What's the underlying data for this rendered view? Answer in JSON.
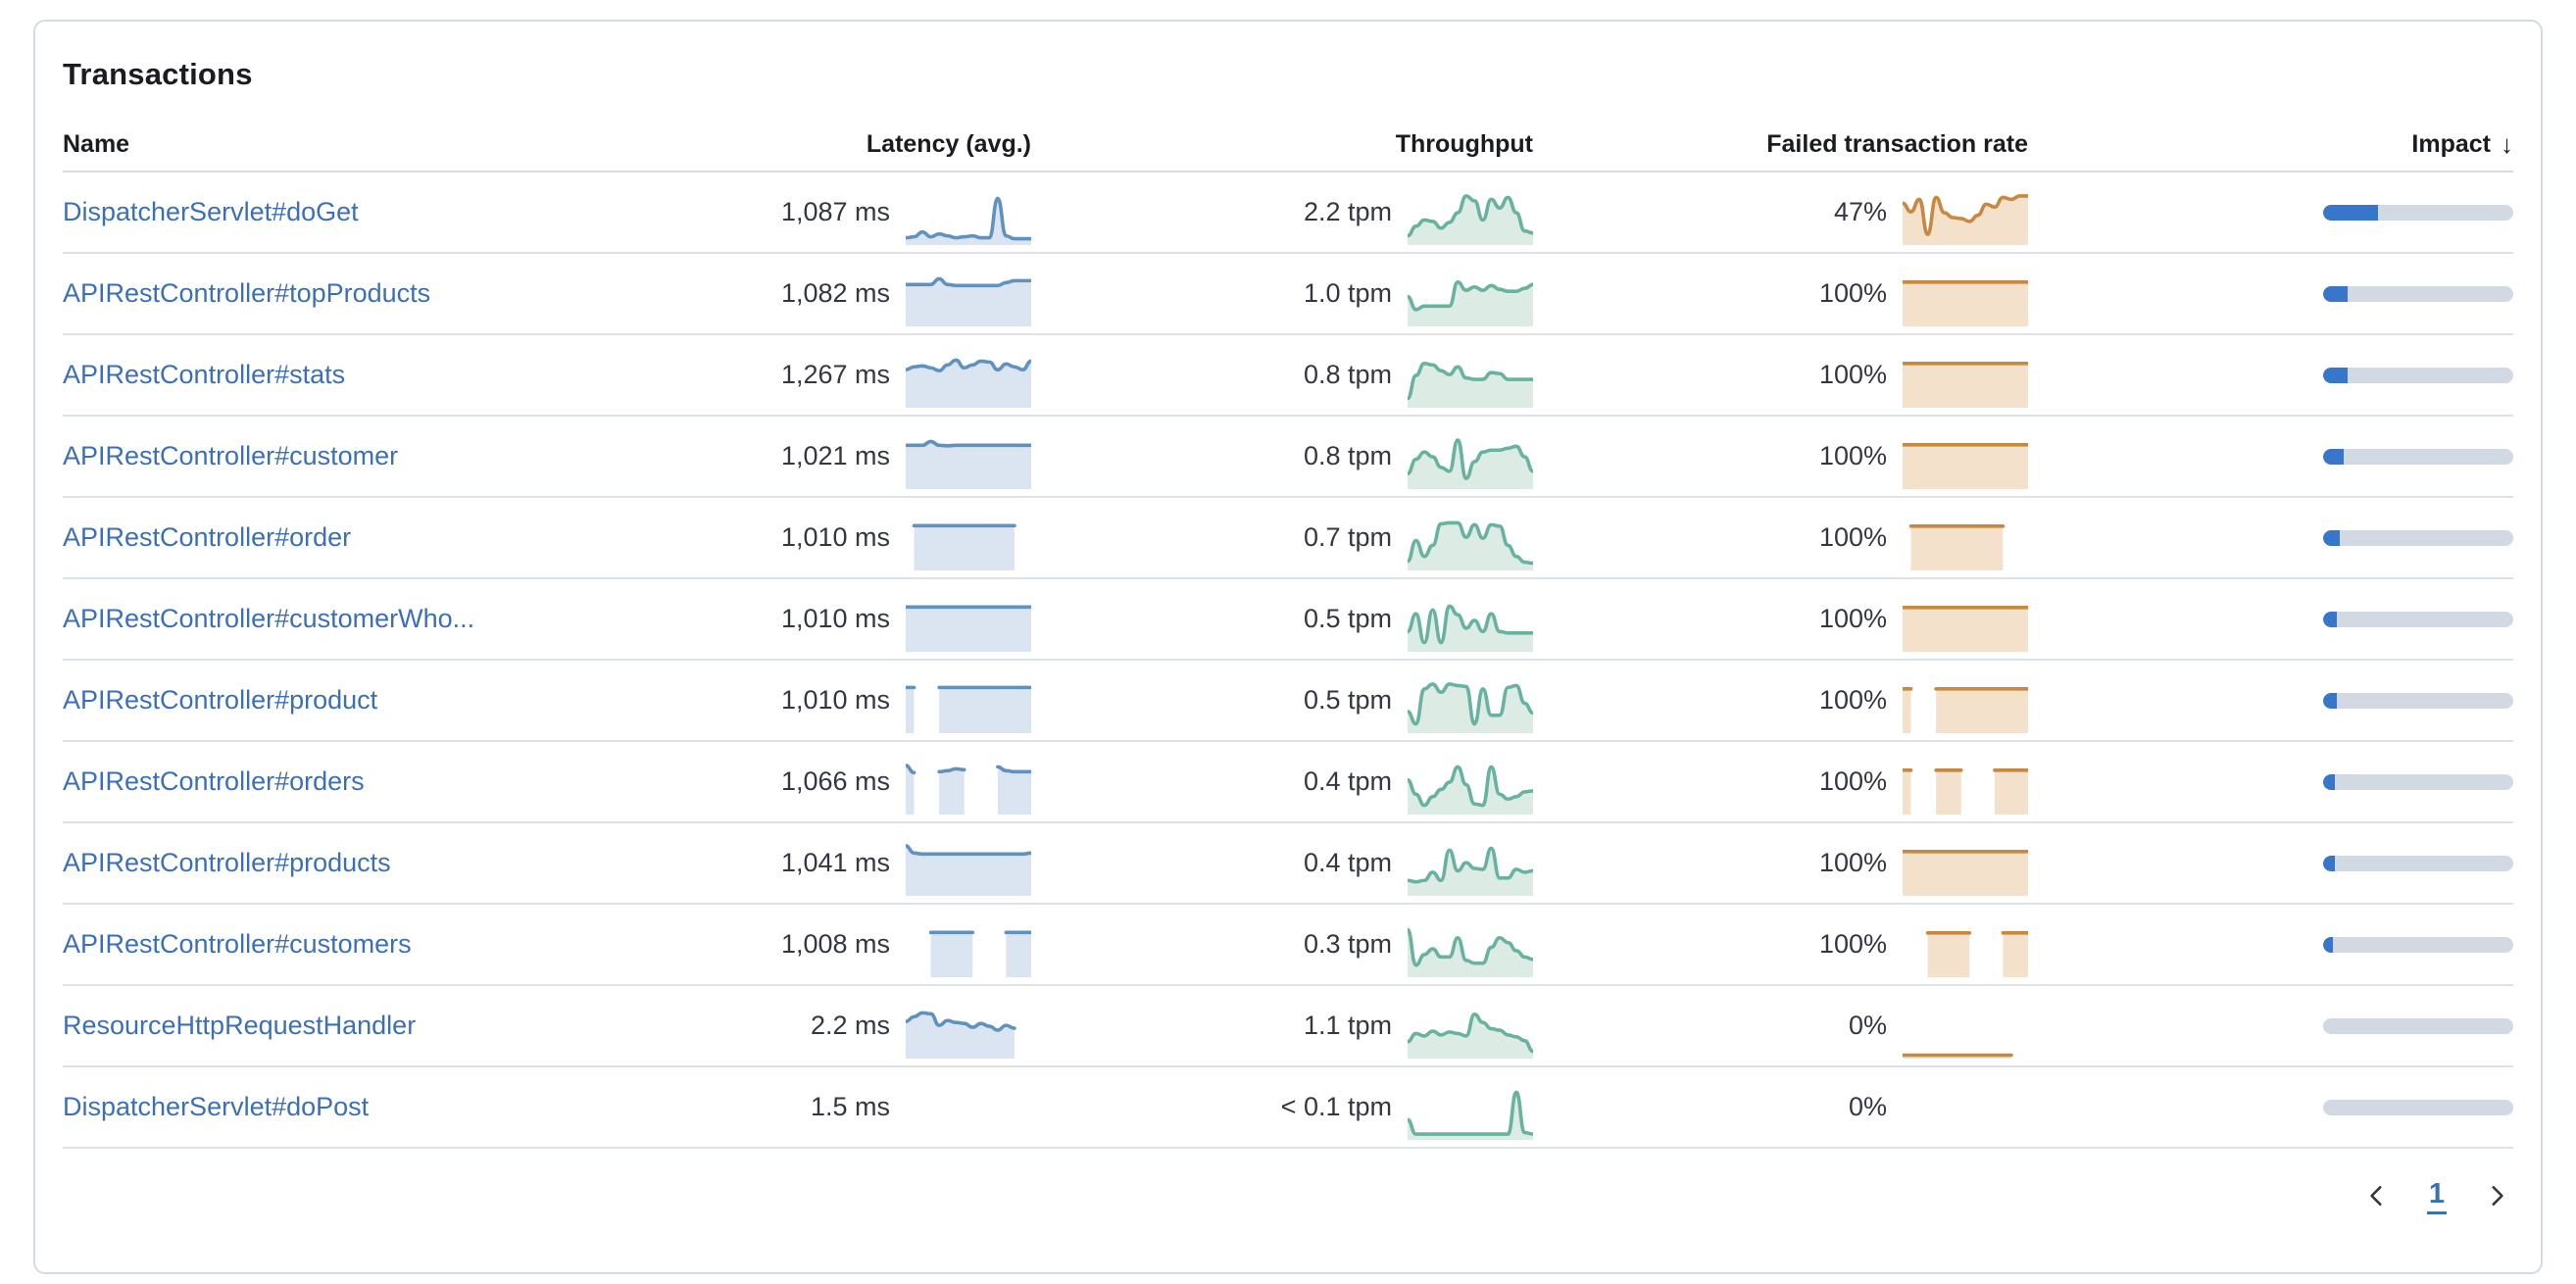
{
  "panel": {
    "title": "Transactions"
  },
  "columns": {
    "name": "Name",
    "latency": "Latency (avg.)",
    "throughput": "Throughput",
    "failed": "Failed transaction rate",
    "impact": "Impact",
    "impact_sort_arrow": "↓",
    "impact_sort_direction": "descending"
  },
  "pagination": {
    "current_page": "1",
    "prev_icon": "chevron-left",
    "next_icon": "chevron-right"
  },
  "colors": {
    "link_blue": "#3b70b8",
    "text_dark": "#343741",
    "heading": "#1a1c21",
    "panel_border": "#d3dae6",
    "row_divider": "#dde1ea",
    "latency_line": "#6092c0",
    "latency_fill": "#dbe5f1",
    "throughput_line": "#68b2a0",
    "throughput_fill": "#dcebe4",
    "failed_line": "#c9883f",
    "failed_fill": "#f3e1cc",
    "impact_bar": "#3776c9",
    "impact_track": "#d3d9e2"
  },
  "rows": [
    {
      "name": "DispatcherServlet#doGet",
      "latency_value": "1,087 ms",
      "latency_points": [
        0.08,
        0.1,
        0.2,
        0.1,
        0.16,
        0.12,
        0.08,
        0.1,
        0.12,
        0.08,
        0.08,
        0.9,
        0.12,
        0.06,
        0.06,
        0.06
      ],
      "throughput_value": "2.2 tpm",
      "throughput_points": [
        0.12,
        0.32,
        0.45,
        0.42,
        0.28,
        0.4,
        0.6,
        0.95,
        0.85,
        0.45,
        0.88,
        0.7,
        0.92,
        0.6,
        0.22,
        0.18
      ],
      "failed_value": "47%",
      "failed_points": [
        0.8,
        0.62,
        0.88,
        0.15,
        0.92,
        0.6,
        0.5,
        0.48,
        0.42,
        0.55,
        0.78,
        0.72,
        0.92,
        0.88,
        0.95,
        0.95
      ],
      "impact_pct": 29
    },
    {
      "name": "APIRestController#topProducts",
      "latency_value": "1,082 ms",
      "latency_points": [
        0.8,
        0.8,
        0.8,
        0.8,
        0.92,
        0.8,
        0.78,
        0.78,
        0.78,
        0.78,
        0.78,
        0.78,
        0.84,
        0.88,
        0.88,
        0.88
      ],
      "throughput_value": "1.0 tpm",
      "throughput_points": [
        0.55,
        0.28,
        0.35,
        0.35,
        0.35,
        0.35,
        0.85,
        0.68,
        0.75,
        0.68,
        0.78,
        0.7,
        0.66,
        0.66,
        0.72,
        0.8
      ],
      "failed_value": "100%",
      "failed_points": [
        0.85,
        0.85,
        0.85,
        0.85,
        0.85,
        0.85,
        0.85,
        0.85,
        0.85,
        0.85,
        0.85,
        0.85,
        0.85,
        0.85,
        0.85,
        0.85
      ],
      "impact_pct": 13
    },
    {
      "name": "APIRestController#stats",
      "latency_value": "1,267 ms",
      "latency_points": [
        0.72,
        0.78,
        0.8,
        0.76,
        0.7,
        0.82,
        0.92,
        0.76,
        0.82,
        0.9,
        0.88,
        0.72,
        0.84,
        0.78,
        0.72,
        0.9
      ],
      "throughput_value": "0.8 tpm",
      "throughput_points": [
        0.12,
        0.6,
        0.85,
        0.82,
        0.7,
        0.62,
        0.78,
        0.55,
        0.52,
        0.52,
        0.66,
        0.64,
        0.52,
        0.52,
        0.52,
        0.52
      ],
      "failed_value": "100%",
      "failed_points": [
        0.85,
        0.85,
        0.85,
        0.85,
        0.85,
        0.85,
        0.85,
        0.85,
        0.85,
        0.85,
        0.85,
        0.85,
        0.85,
        0.85,
        0.85,
        0.85
      ],
      "impact_pct": 13
    },
    {
      "name": "APIRestController#customer",
      "latency_value": "1,021 ms",
      "latency_points": [
        0.84,
        0.84,
        0.84,
        0.92,
        0.84,
        0.83,
        0.84,
        0.84,
        0.84,
        0.84,
        0.84,
        0.84,
        0.84,
        0.84,
        0.84,
        0.84
      ],
      "throughput_value": "0.8 tpm",
      "throughput_points": [
        0.25,
        0.55,
        0.7,
        0.6,
        0.38,
        0.3,
        0.95,
        0.15,
        0.5,
        0.7,
        0.74,
        0.74,
        0.78,
        0.82,
        0.6,
        0.3
      ],
      "failed_value": "100%",
      "failed_points": [
        0.85,
        0.85,
        0.85,
        0.85,
        0.85,
        0.85,
        0.85,
        0.85,
        0.85,
        0.85,
        0.85,
        0.85,
        0.85,
        0.85,
        0.85,
        0.85
      ],
      "impact_pct": 11
    },
    {
      "name": "APIRestController#order",
      "latency_value": "1,010 ms",
      "latency_points": [
        null,
        0.86,
        0.86,
        0.86,
        0.86,
        0.86,
        0.86,
        0.86,
        0.86,
        0.86,
        0.86,
        0.86,
        0.86,
        0.86,
        null,
        null
      ],
      "throughput_value": "0.7 tpm",
      "throughput_points": [
        0.12,
        0.55,
        0.22,
        0.45,
        0.9,
        0.92,
        0.92,
        0.62,
        0.88,
        0.6,
        0.88,
        0.85,
        0.45,
        0.22,
        0.1,
        0.08
      ],
      "failed_value": "100%",
      "failed_points": [
        null,
        0.85,
        0.85,
        0.85,
        0.85,
        0.85,
        0.85,
        0.85,
        0.85,
        0.85,
        0.85,
        0.85,
        0.85,
        null,
        null,
        null
      ],
      "impact_pct": 9
    },
    {
      "name": "APIRestController#customerWho...",
      "latency_value": "1,010 ms",
      "latency_points": [
        0.86,
        0.86,
        0.86,
        0.86,
        0.86,
        0.86,
        0.86,
        0.86,
        0.86,
        0.86,
        0.86,
        0.86,
        0.86,
        0.86,
        0.86,
        0.86
      ],
      "throughput_value": "0.5 tpm",
      "throughput_points": [
        0.35,
        0.72,
        0.12,
        0.8,
        0.12,
        0.88,
        0.7,
        0.42,
        0.58,
        0.35,
        0.72,
        0.35,
        0.32,
        0.32,
        0.32,
        0.32
      ],
      "failed_value": "100%",
      "failed_points": [
        0.85,
        0.85,
        0.85,
        0.85,
        0.85,
        0.85,
        0.85,
        0.85,
        0.85,
        0.85,
        0.85,
        0.85,
        0.85,
        0.85,
        0.85,
        0.85
      ],
      "impact_pct": 7
    },
    {
      "name": "APIRestController#product",
      "latency_value": "1,010 ms",
      "latency_points": [
        0.88,
        0.88,
        null,
        null,
        0.88,
        0.88,
        0.88,
        0.88,
        0.88,
        0.88,
        0.88,
        0.88,
        0.88,
        0.88,
        0.88,
        0.88
      ],
      "throughput_value": "0.5 tpm",
      "throughput_points": [
        0.38,
        0.12,
        0.85,
        0.95,
        0.78,
        0.95,
        0.92,
        0.9,
        0.12,
        0.85,
        0.3,
        0.3,
        0.88,
        0.92,
        0.55,
        0.35
      ],
      "failed_value": "100%",
      "failed_points": [
        0.85,
        0.85,
        null,
        null,
        0.85,
        0.85,
        0.85,
        0.85,
        0.85,
        0.85,
        0.85,
        0.85,
        0.85,
        0.85,
        0.85,
        0.85
      ],
      "impact_pct": 7
    },
    {
      "name": "APIRestController#orders",
      "latency_value": "1,066 ms",
      "latency_points": [
        0.95,
        0.8,
        null,
        null,
        0.82,
        0.84,
        0.88,
        0.86,
        null,
        null,
        null,
        0.92,
        0.84,
        0.82,
        0.82,
        0.82
      ],
      "throughput_value": "0.4 tpm",
      "throughput_points": [
        0.65,
        0.35,
        0.12,
        0.3,
        0.45,
        0.6,
        0.92,
        0.55,
        0.15,
        0.12,
        0.92,
        0.35,
        0.25,
        0.3,
        0.4,
        0.42
      ],
      "failed_value": "100%",
      "failed_points": [
        0.85,
        0.85,
        null,
        null,
        0.85,
        0.85,
        0.85,
        0.85,
        null,
        null,
        null,
        0.85,
        0.85,
        0.85,
        0.85,
        0.85
      ],
      "impact_pct": 6
    },
    {
      "name": "APIRestController#products",
      "latency_value": "1,041 ms",
      "latency_points": [
        0.97,
        0.82,
        0.8,
        0.8,
        0.8,
        0.8,
        0.8,
        0.8,
        0.8,
        0.8,
        0.8,
        0.8,
        0.8,
        0.8,
        0.8,
        0.82
      ],
      "throughput_value": "0.4 tpm",
      "throughput_points": [
        0.25,
        0.22,
        0.25,
        0.42,
        0.25,
        0.88,
        0.45,
        0.62,
        0.5,
        0.48,
        0.92,
        0.3,
        0.3,
        0.48,
        0.42,
        0.45
      ],
      "failed_value": "100%",
      "failed_points": [
        0.85,
        0.85,
        0.85,
        0.85,
        0.85,
        0.85,
        0.85,
        0.85,
        0.85,
        0.85,
        0.85,
        0.85,
        0.85,
        0.85,
        0.85,
        0.85
      ],
      "impact_pct": 6
    },
    {
      "name": "APIRestController#customers",
      "latency_value": "1,008 ms",
      "latency_points": [
        null,
        null,
        null,
        0.86,
        0.86,
        0.86,
        0.86,
        0.86,
        0.86,
        null,
        null,
        null,
        0.86,
        0.86,
        0.86,
        0.86
      ],
      "throughput_value": "0.3 tpm",
      "throughput_points": [
        0.92,
        0.18,
        0.4,
        0.52,
        0.35,
        0.35,
        0.75,
        0.28,
        0.22,
        0.22,
        0.55,
        0.75,
        0.65,
        0.48,
        0.35,
        0.3
      ],
      "failed_value": "100%",
      "failed_points": [
        null,
        null,
        null,
        0.85,
        0.85,
        0.85,
        0.85,
        0.85,
        0.85,
        null,
        null,
        null,
        0.85,
        0.85,
        0.85,
        0.85
      ],
      "impact_pct": 5
    },
    {
      "name": "ResourceHttpRequestHandler",
      "latency_value": "2.2 ms",
      "latency_points": [
        0.7,
        0.8,
        0.88,
        0.86,
        0.62,
        0.72,
        0.68,
        0.66,
        0.58,
        0.66,
        0.6,
        0.52,
        0.62,
        0.56,
        null,
        null
      ],
      "throughput_value": "1.1 tpm",
      "throughput_points": [
        0.28,
        0.45,
        0.4,
        0.5,
        0.42,
        0.48,
        0.45,
        0.4,
        0.85,
        0.68,
        0.55,
        0.52,
        0.42,
        0.38,
        0.3,
        0.08
      ],
      "failed_value": "0%",
      "failed_points": [
        0,
        0,
        0,
        0,
        0,
        0,
        0,
        0,
        0,
        0,
        0,
        0,
        0,
        0,
        null,
        null
      ],
      "impact_pct": 0
    },
    {
      "name": "DispatcherServlet#doPost",
      "latency_value": "1.5 ms",
      "latency_points": null,
      "throughput_value": "< 0.1 tpm",
      "throughput_points": [
        0.35,
        0.05,
        0.05,
        0.05,
        0.05,
        0.05,
        0.05,
        0.05,
        0.05,
        0.05,
        0.05,
        0.05,
        0.05,
        0.92,
        0.08,
        0.05
      ],
      "failed_value": "0%",
      "failed_points": null,
      "impact_pct": 0
    }
  ]
}
